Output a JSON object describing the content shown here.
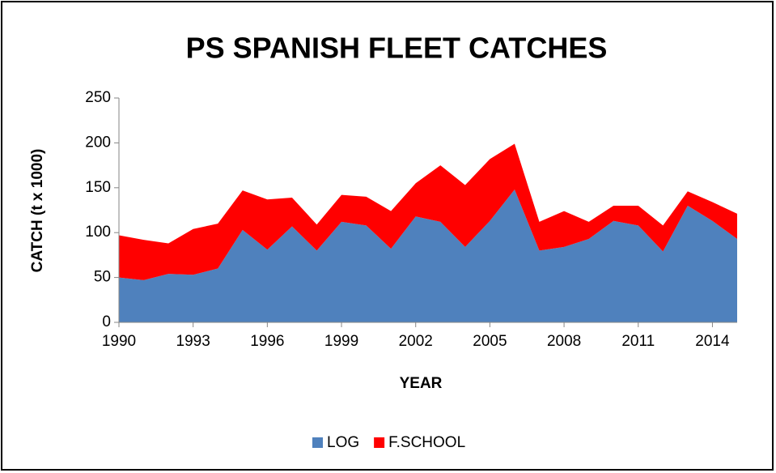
{
  "chart_data": {
    "type": "stacked-area",
    "title": "PS SPANISH FLEET CATCHES",
    "x_label": "YEAR",
    "y_label": "CATCH (t x 1000)",
    "x": [
      1990,
      1991,
      1992,
      1993,
      1994,
      1995,
      1996,
      1997,
      1998,
      1999,
      2000,
      2001,
      2002,
      2003,
      2004,
      2005,
      2006,
      2007,
      2008,
      2009,
      2010,
      2011,
      2012,
      2013,
      2014,
      2015
    ],
    "series": [
      {
        "name": "LOG",
        "color": "#4f81bd",
        "values": [
          50,
          47,
          54,
          53,
          60,
          103,
          81,
          107,
          80,
          112,
          108,
          82,
          118,
          112,
          84,
          113,
          148,
          80,
          84,
          93,
          113,
          108,
          79,
          130,
          113,
          93
        ]
      },
      {
        "name": "F.SCHOOL",
        "color": "#ff0000",
        "values": [
          47,
          45,
          34,
          51,
          50,
          44,
          56,
          32,
          29,
          30,
          32,
          42,
          37,
          63,
          69,
          69,
          51,
          32,
          40,
          19,
          17,
          22,
          29,
          16,
          21,
          28
        ]
      }
    ],
    "xlim": [
      1990,
      2015
    ],
    "xticks": [
      1990,
      1993,
      1996,
      1999,
      2002,
      2005,
      2008,
      2011,
      2014
    ],
    "ylim": [
      0,
      250
    ],
    "yticks": [
      0,
      50,
      100,
      150,
      200,
      250
    ],
    "legend": "bottom"
  }
}
